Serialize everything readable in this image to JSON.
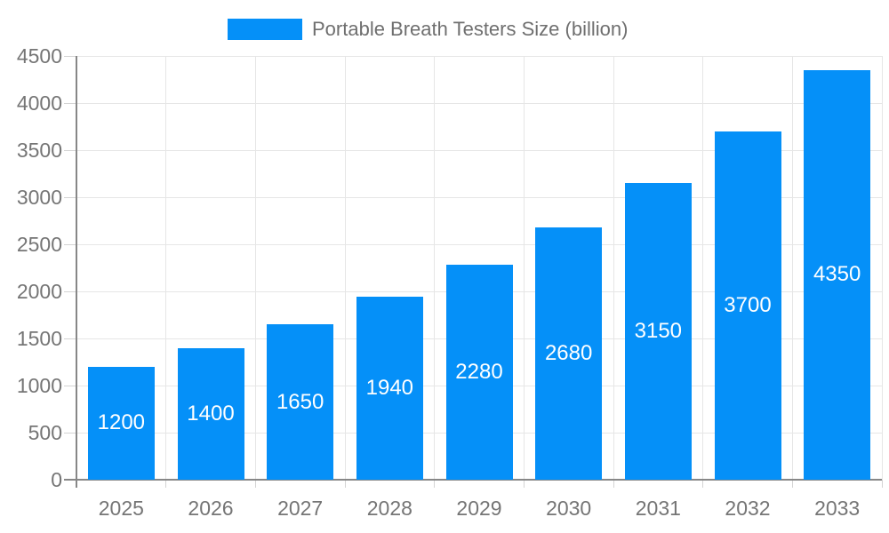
{
  "chart_data": {
    "type": "bar",
    "title": "Portable Breath Testers Size (billion)",
    "categories": [
      "2025",
      "2026",
      "2027",
      "2028",
      "2029",
      "2030",
      "2031",
      "2032",
      "2033"
    ],
    "values": [
      1200,
      1400,
      1650,
      1940,
      2280,
      2680,
      3150,
      3700,
      4350
    ],
    "xlabel": "",
    "ylabel": "",
    "ylim": [
      0,
      4500
    ],
    "yticks": [
      0,
      500,
      1000,
      1500,
      2000,
      2500,
      3000,
      3500,
      4000,
      4500
    ],
    "grid": true,
    "legend_position": "top",
    "bar_color": "#0590f8",
    "value_label_color": "#ffffff",
    "axis_text_color": "#757575",
    "grid_color": "#e6e6e6",
    "axis_line_color": "#878787"
  }
}
